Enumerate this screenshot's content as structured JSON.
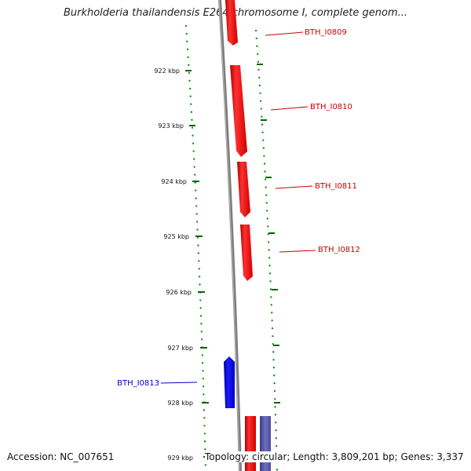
{
  "title": "Burkholderia thailandensis E264 chromosome I, complete genom...",
  "ticks": [
    "922 kbp",
    "923 kbp",
    "924 kbp",
    "925 kbp",
    "926 kbp",
    "927 kbp",
    "928 kbp",
    "929 kbp"
  ],
  "genes": [
    {
      "label": "BTH_I0809",
      "strand": "forward"
    },
    {
      "label": "BTH_I0810",
      "strand": "forward"
    },
    {
      "label": "BTH_I0811",
      "strand": "forward"
    },
    {
      "label": "BTH_I0812",
      "strand": "forward"
    },
    {
      "label": "BTH_I0813",
      "strand": "reverse"
    }
  ],
  "footer": {
    "accession": "Accession: NC_007651",
    "topology": "Topology: circular; Length: 3,809,201 bp; Genes: 3,337"
  },
  "colors": {
    "forward": "#ff0000",
    "reverse": "#0000ff",
    "backbone": "#808080",
    "tick": "#006600",
    "ring": "#008800"
  }
}
